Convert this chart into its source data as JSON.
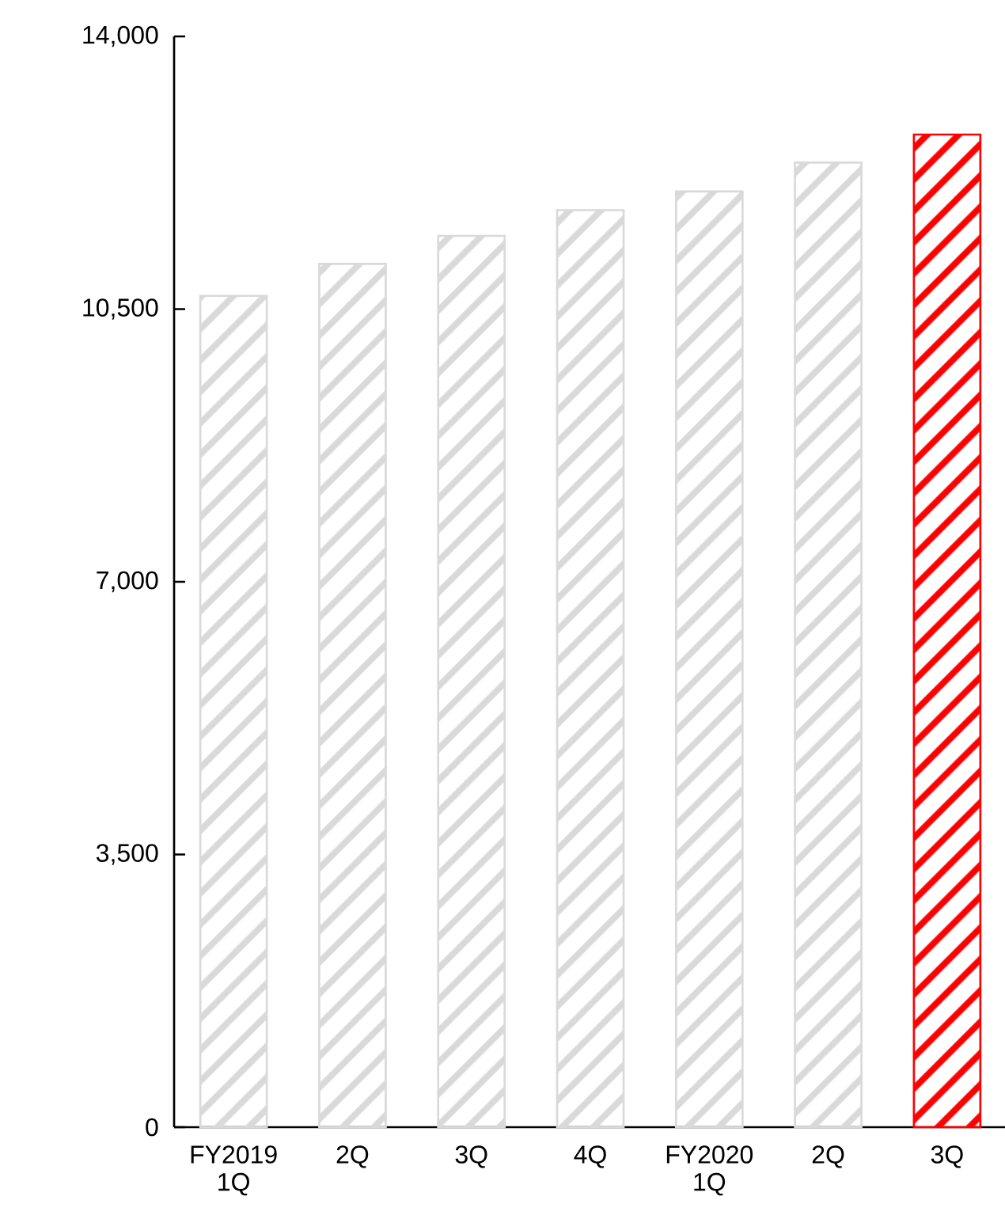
{
  "chart_data": {
    "type": "bar",
    "categories": [
      "FY2019 1Q",
      "2Q",
      "3Q",
      "4Q",
      "FY2020 1Q",
      "2Q",
      "3Q"
    ],
    "values": [
      10670,
      11080,
      11440,
      11770,
      12010,
      12380,
      12740
    ],
    "colors": [
      "#d9d9d9",
      "#d9d9d9",
      "#d9d9d9",
      "#d9d9d9",
      "#d9d9d9",
      "#d9d9d9",
      "#ff0000"
    ],
    "ylim": [
      0,
      14000
    ],
    "yticks": [
      0,
      {
        "value": 3500,
        "label": "3,500"
      },
      {
        "value": 7000,
        "label": "7,000"
      },
      {
        "value": 10500,
        "label": "10,500"
      },
      {
        "value": 14000,
        "label": "14,000"
      }
    ]
  }
}
